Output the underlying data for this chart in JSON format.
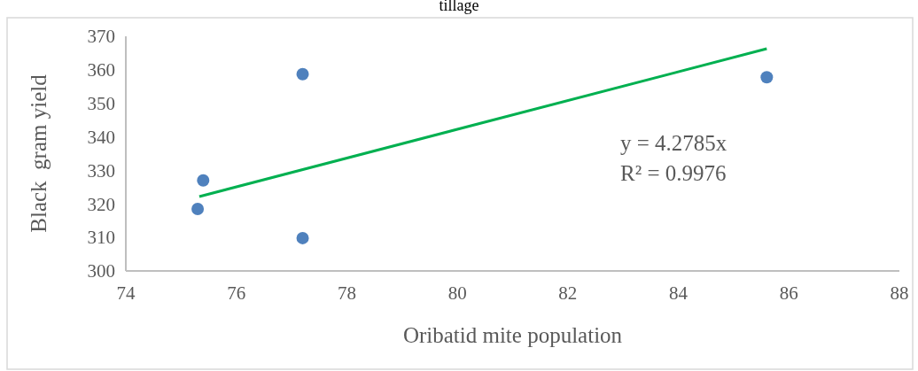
{
  "chart_data": {
    "type": "scatter",
    "title": "tillage",
    "xlabel": "Oribatid mite population",
    "ylabel": "Black  gram yield",
    "series": [
      {
        "color": "#4f81bd",
        "x": [
          75.3,
          75.4,
          77.2,
          77.2,
          85.6
        ],
        "values": [
          318.5,
          327,
          358.7,
          309.8,
          357.8
        ],
        "marker": "circle"
      },
      {
        "type": "line",
        "color": "#00b050",
        "x": [
          75.33,
          85.6
        ],
        "values": [
          322.2,
          366.3
        ],
        "marker": "none",
        "line_style": "solid"
      }
    ],
    "annotations": [
      "y = 4.2785x",
      "R² = 0.9976"
    ],
    "xlim": [
      74,
      88
    ],
    "xticks": [
      74,
      76,
      78,
      80,
      82,
      84,
      86,
      88
    ],
    "ylim": [
      300,
      370
    ],
    "yticks": [
      300,
      310,
      320,
      330,
      340,
      350,
      360,
      370
    ],
    "grid": false
  }
}
